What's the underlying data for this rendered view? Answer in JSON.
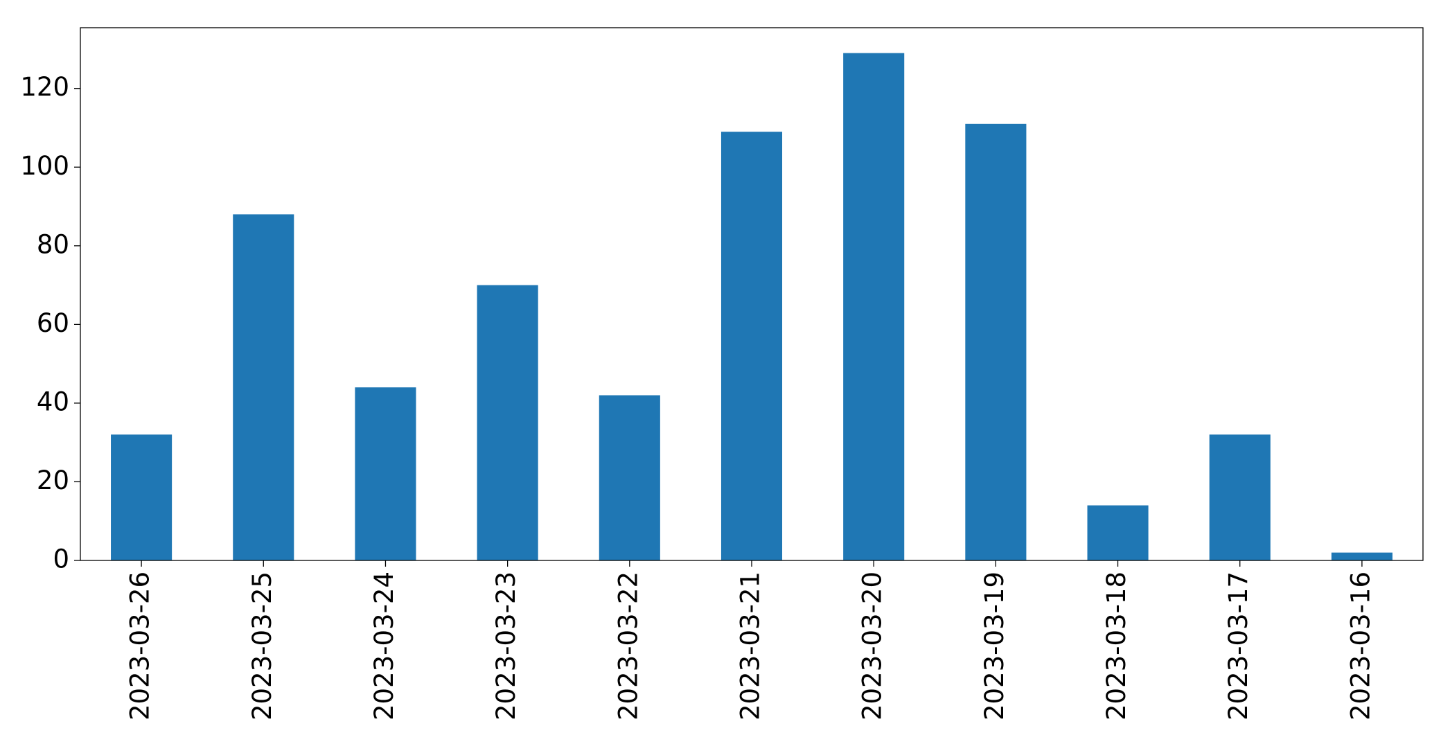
{
  "chart_data": {
    "type": "bar",
    "categories": [
      "2023-03-26",
      "2023-03-25",
      "2023-03-24",
      "2023-03-23",
      "2023-03-22",
      "2023-03-21",
      "2023-03-20",
      "2023-03-19",
      "2023-03-18",
      "2023-03-17",
      "2023-03-16"
    ],
    "values": [
      32,
      88,
      44,
      70,
      42,
      109,
      129,
      111,
      14,
      32,
      2
    ],
    "color": "#1f77b4",
    "ylim": [
      0,
      135.45
    ],
    "yticks": [
      0,
      20,
      40,
      60,
      80,
      100,
      120
    ],
    "grid": false
  }
}
